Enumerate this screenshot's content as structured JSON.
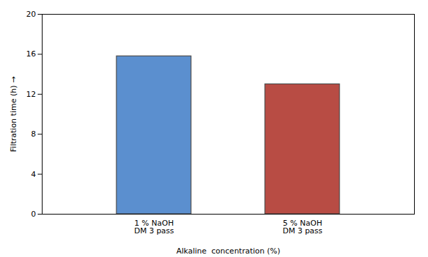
{
  "chart_data": {
    "type": "bar",
    "categories": [
      "1 % NaOH\nDM 3 pass",
      "5 % NaOH\nDM 3 pass"
    ],
    "values": [
      15.8,
      13.0
    ],
    "colors": [
      "#5b8fcf",
      "#b84c44"
    ],
    "xlabel": "Alkaline  concentration (%)",
    "ylabel": "Filtration time (h)",
    "ylim": [
      0,
      20
    ],
    "yticks": [
      0,
      4,
      8,
      12,
      16,
      20
    ],
    "grid": false
  }
}
